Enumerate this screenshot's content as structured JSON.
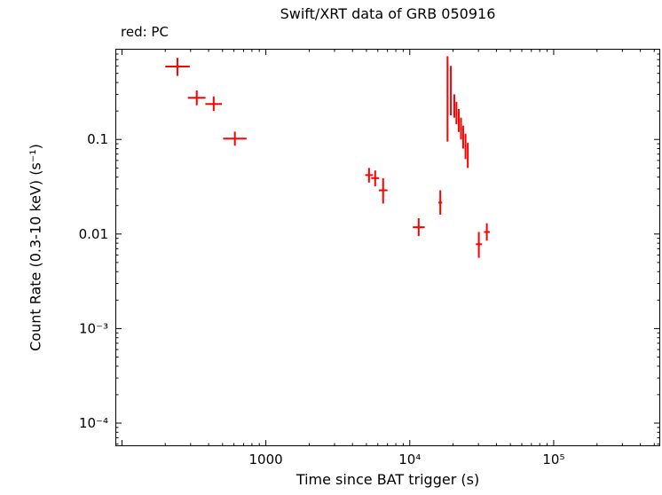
{
  "page": {
    "background": "#ffffff"
  },
  "chart_data": {
    "type": "scatter",
    "title": "Swift/XRT data of GRB 050916",
    "mode_label": "red: PC",
    "xlabel": "Time since BAT trigger (s)",
    "ylabel": "Count Rate (0.3-10 keV) (s⁻¹)",
    "xscale": "log",
    "yscale": "log",
    "grid": false,
    "axis_color": "#000000",
    "xlim": [
      90,
      550000
    ],
    "ylim": [
      5.7e-05,
      0.91
    ],
    "xticks": [
      {
        "value": 1000,
        "label": "1000"
      },
      {
        "value": 10000,
        "label": "10⁴"
      },
      {
        "value": 100000,
        "label": "10⁵"
      }
    ],
    "yticks": [
      {
        "value": 0.1,
        "label": "0.1"
      },
      {
        "value": 0.01,
        "label": "0.01"
      },
      {
        "value": 0.001,
        "label": "10⁻³"
      },
      {
        "value": 0.0001,
        "label": "10⁻⁴"
      }
    ],
    "series": [
      {
        "name": "PC",
        "color": "#ff0000",
        "marker": "cross-errorbar",
        "points": [
          {
            "t": 243,
            "t_lo": 200,
            "t_hi": 296,
            "r": 0.59,
            "r_lo": 0.47,
            "r_hi": 0.73
          },
          {
            "t": 331,
            "t_lo": 287,
            "t_hi": 381,
            "r": 0.276,
            "r_lo": 0.23,
            "r_hi": 0.33
          },
          {
            "t": 434,
            "t_lo": 380,
            "t_hi": 495,
            "r": 0.237,
            "r_lo": 0.2,
            "r_hi": 0.285
          },
          {
            "t": 609,
            "t_lo": 505,
            "t_hi": 735,
            "r": 0.102,
            "r_lo": 0.086,
            "r_hi": 0.121
          },
          {
            "t": 5210,
            "t_lo": 4900,
            "t_hi": 5540,
            "r": 0.042,
            "r_lo": 0.035,
            "r_hi": 0.05
          },
          {
            "t": 5750,
            "t_lo": 5400,
            "t_hi": 6120,
            "r": 0.039,
            "r_lo": 0.032,
            "r_hi": 0.047
          },
          {
            "t": 6530,
            "t_lo": 6100,
            "t_hi": 7000,
            "r": 0.029,
            "r_lo": 0.021,
            "r_hi": 0.039
          },
          {
            "t": 11530,
            "t_lo": 10500,
            "t_hi": 12700,
            "r": 0.0118,
            "r_lo": 0.0095,
            "r_hi": 0.0147
          },
          {
            "t": 16300,
            "t_lo": 15800,
            "t_hi": 16800,
            "r": 0.0215,
            "r_lo": 0.016,
            "r_hi": 0.029
          },
          {
            "t": 18300,
            "t_lo": 18100,
            "t_hi": 18500,
            "r": 0.28,
            "r_lo": 0.095,
            "r_hi": 0.76
          },
          {
            "t": 19300,
            "t_lo": 19100,
            "t_hi": 19500,
            "r": 0.33,
            "r_lo": 0.18,
            "r_hi": 0.6
          },
          {
            "t": 20400,
            "t_lo": 20200,
            "t_hi": 20700,
            "r": 0.23,
            "r_lo": 0.17,
            "r_hi": 0.3
          },
          {
            "t": 21100,
            "t_lo": 20900,
            "t_hi": 21400,
            "r": 0.19,
            "r_lo": 0.145,
            "r_hi": 0.25
          },
          {
            "t": 21900,
            "t_lo": 21700,
            "t_hi": 22200,
            "r": 0.16,
            "r_lo": 0.12,
            "r_hi": 0.21
          },
          {
            "t": 22700,
            "t_lo": 22500,
            "t_hi": 23000,
            "r": 0.13,
            "r_lo": 0.1,
            "r_hi": 0.17
          },
          {
            "t": 23500,
            "t_lo": 23300,
            "t_hi": 23800,
            "r": 0.105,
            "r_lo": 0.08,
            "r_hi": 0.14
          },
          {
            "t": 24400,
            "t_lo": 24200,
            "t_hi": 24700,
            "r": 0.085,
            "r_lo": 0.062,
            "r_hi": 0.115
          },
          {
            "t": 25300,
            "t_lo": 25100,
            "t_hi": 25600,
            "r": 0.068,
            "r_lo": 0.05,
            "r_hi": 0.092
          },
          {
            "t": 30200,
            "t_lo": 28800,
            "t_hi": 31700,
            "r": 0.0078,
            "r_lo": 0.0056,
            "r_hi": 0.0105
          },
          {
            "t": 34300,
            "t_lo": 32800,
            "t_hi": 36000,
            "r": 0.0105,
            "r_lo": 0.0085,
            "r_hi": 0.013
          }
        ]
      }
    ]
  }
}
